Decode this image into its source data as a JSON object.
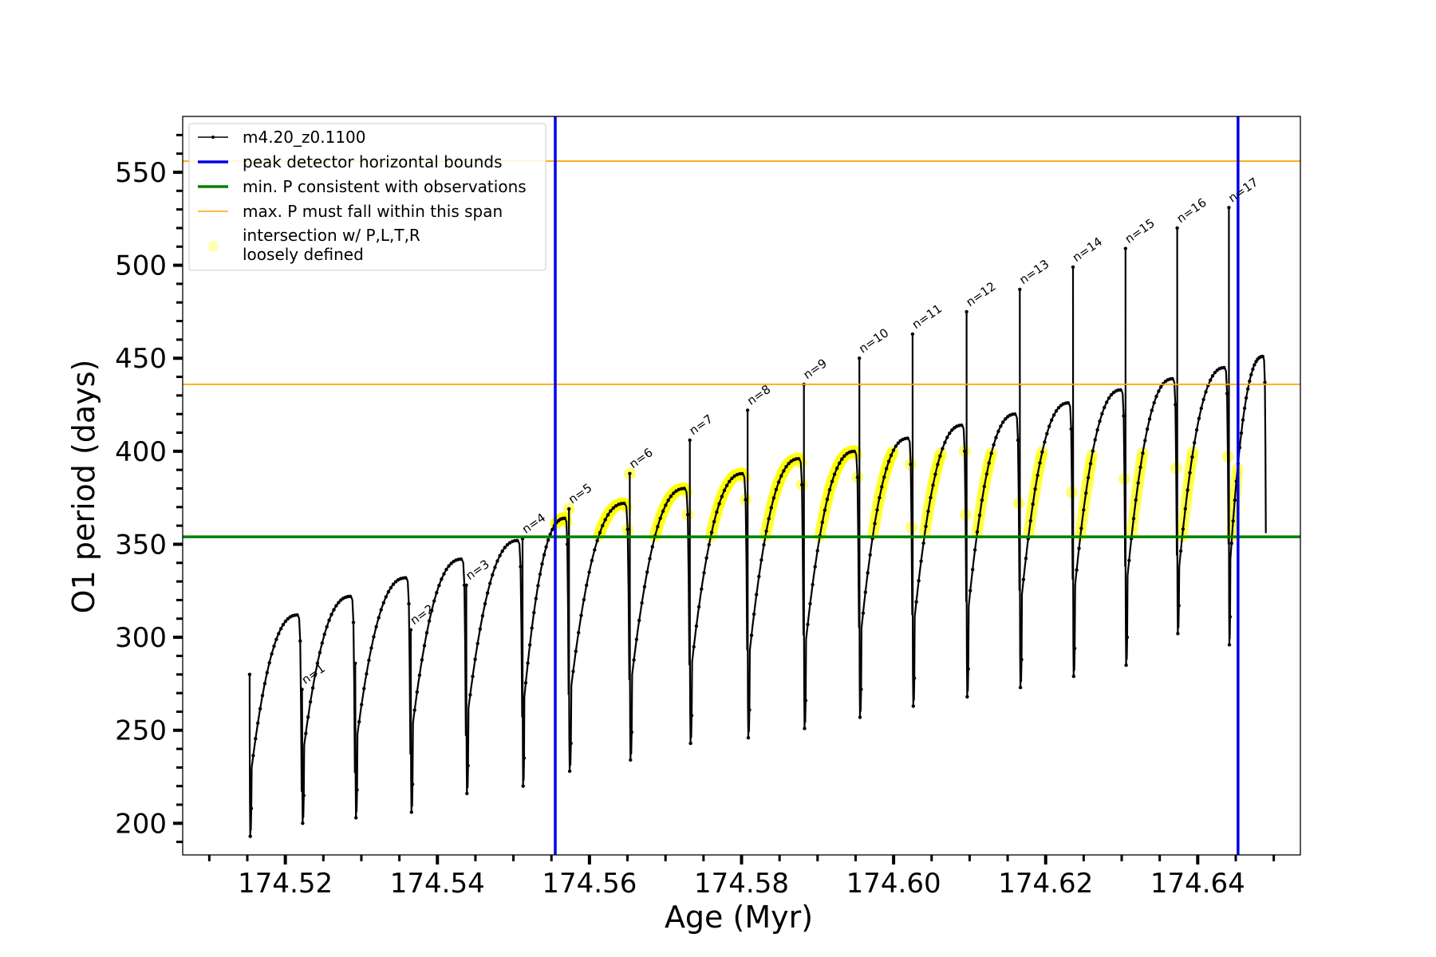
{
  "chart_data": {
    "type": "line",
    "xlabel": "Age (Myr)",
    "ylabel": "O1 period (days)",
    "xlim": [
      174.5065,
      174.6535
    ],
    "ylim": [
      183,
      580
    ],
    "xticks": [
      174.52,
      174.54,
      174.56,
      174.58,
      174.6,
      174.62,
      174.64
    ],
    "xtick_labels": [
      "174.52",
      "174.54",
      "174.56",
      "174.58",
      "174.60",
      "174.62",
      "174.64"
    ],
    "yticks": [
      200,
      250,
      300,
      350,
      400,
      450,
      500,
      550
    ],
    "ytick_labels": [
      "200",
      "250",
      "300",
      "350",
      "400",
      "450",
      "500",
      "550"
    ],
    "grid": false,
    "legend_placement": "top-left",
    "legend": [
      {
        "label": "m4.20_z0.1100",
        "kind": "line-marker",
        "color": "#000000"
      },
      {
        "label": "peak detector horizontal bounds",
        "kind": "line",
        "color": "#0000ee"
      },
      {
        "label": "min. P consistent with observations",
        "kind": "line",
        "color": "#008000"
      },
      {
        "label": "max. P must fall within this span",
        "kind": "line",
        "color": "#ffa500"
      },
      {
        "label": "intersection w/ P,L,T,R",
        "label2": "loosely defined",
        "kind": "dot",
        "color": "#ffff00"
      }
    ],
    "vertical_lines": [
      {
        "x": 174.5555,
        "color": "#0000ee"
      },
      {
        "x": 174.6453,
        "color": "#0000ee"
      }
    ],
    "horizontal_lines": [
      {
        "y": 354,
        "color": "#008000"
      },
      {
        "y": 436,
        "color": "#ffa500"
      },
      {
        "y": 556,
        "color": "#ffa500"
      }
    ],
    "yellow_band": {
      "y_min": 354,
      "y_max": 400
    },
    "series_name": "m4.20_z0.1100",
    "series_color": "#000000",
    "pulses": [
      {
        "n": "",
        "t_start": 174.5153,
        "t_end": 174.5222,
        "p_spike": 280,
        "p_min": 193,
        "p_start": 230,
        "p_end": 312
      },
      {
        "n": "n=1",
        "t_start": 174.5222,
        "t_end": 174.5292,
        "p_spike": 272,
        "p_min": 200,
        "p_start": 242,
        "p_end": 322
      },
      {
        "n": "",
        "t_start": 174.5292,
        "t_end": 174.5365,
        "p_spike": 286,
        "p_min": 203,
        "p_start": 248,
        "p_end": 332
      },
      {
        "n": "n=2",
        "t_start": 174.5365,
        "t_end": 174.5438,
        "p_spike": 304,
        "p_min": 206,
        "p_start": 254,
        "p_end": 342
      },
      {
        "n": "n=3",
        "t_start": 174.5438,
        "t_end": 174.5512,
        "p_spike": 328,
        "p_min": 216,
        "p_start": 262,
        "p_end": 352
      },
      {
        "n": "n=4",
        "t_start": 174.5512,
        "t_end": 174.5573,
        "p_spike": 353,
        "p_min": 220,
        "p_start": 268,
        "p_end": 364
      },
      {
        "n": "n=5",
        "t_start": 174.5573,
        "t_end": 174.5653,
        "p_spike": 369,
        "p_min": 228,
        "p_start": 274,
        "p_end": 372
      },
      {
        "n": "n=6",
        "t_start": 174.5653,
        "t_end": 174.5732,
        "p_spike": 388,
        "p_min": 234,
        "p_start": 280,
        "p_end": 380
      },
      {
        "n": "n=7",
        "t_start": 174.5732,
        "t_end": 174.5808,
        "p_spike": 406,
        "p_min": 243,
        "p_start": 287,
        "p_end": 388
      },
      {
        "n": "n=8",
        "t_start": 174.5808,
        "t_end": 174.5882,
        "p_spike": 422,
        "p_min": 246,
        "p_start": 293,
        "p_end": 396
      },
      {
        "n": "n=9",
        "t_start": 174.5882,
        "t_end": 174.5955,
        "p_spike": 436,
        "p_min": 251,
        "p_start": 299,
        "p_end": 400
      },
      {
        "n": "n=10",
        "t_start": 174.5955,
        "t_end": 174.6025,
        "p_spike": 450,
        "p_min": 257,
        "p_start": 305,
        "p_end": 407
      },
      {
        "n": "n=11",
        "t_start": 174.6025,
        "t_end": 174.6096,
        "p_spike": 463,
        "p_min": 263,
        "p_start": 311,
        "p_end": 414
      },
      {
        "n": "n=12",
        "t_start": 174.6096,
        "t_end": 174.6166,
        "p_spike": 475,
        "p_min": 268,
        "p_start": 317,
        "p_end": 420
      },
      {
        "n": "n=13",
        "t_start": 174.6166,
        "t_end": 174.6236,
        "p_spike": 487,
        "p_min": 273,
        "p_start": 323,
        "p_end": 426
      },
      {
        "n": "n=14",
        "t_start": 174.6236,
        "t_end": 174.6305,
        "p_spike": 499,
        "p_min": 279,
        "p_start": 328,
        "p_end": 433
      },
      {
        "n": "n=15",
        "t_start": 174.6305,
        "t_end": 174.6373,
        "p_spike": 509,
        "p_min": 285,
        "p_start": 333,
        "p_end": 439
      },
      {
        "n": "n=16",
        "t_start": 174.6373,
        "t_end": 174.6441,
        "p_spike": 520,
        "p_min": 302,
        "p_start": 338,
        "p_end": 445
      },
      {
        "n": "n=17",
        "t_start": 174.6441,
        "t_end": 174.649,
        "p_spike": 531,
        "p_min": 296,
        "p_start": 342,
        "p_end": 451
      }
    ]
  }
}
